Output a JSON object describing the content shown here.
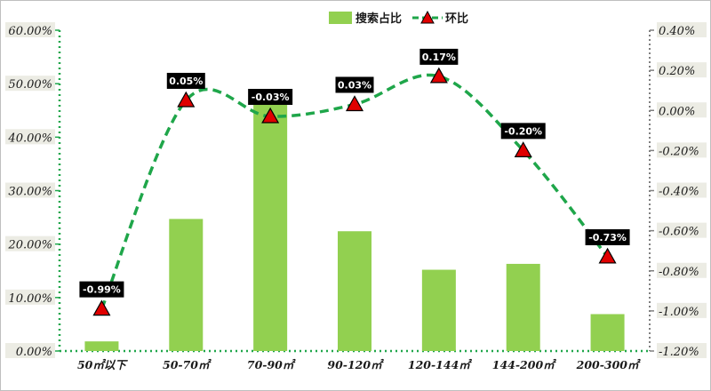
{
  "chart_data": {
    "type": "bar",
    "categories": [
      "50㎡以下",
      "50-70㎡",
      "70-90㎡",
      "90-120㎡",
      "120-144㎡",
      "144-200㎡",
      "200-300㎡"
    ],
    "series": [
      {
        "name": "搜索占比",
        "type": "bar",
        "axis": "left",
        "color": "#92d050",
        "values": [
          1.8,
          24.7,
          46.3,
          22.4,
          15.2,
          16.3,
          6.9
        ]
      },
      {
        "name": "环比",
        "type": "line",
        "axis": "right",
        "color": "#1fa64a",
        "marker_color": "#e00000",
        "values": [
          -0.99,
          0.05,
          -0.03,
          0.03,
          0.17,
          -0.2,
          -0.73
        ],
        "data_labels": [
          "-0.99%",
          "0.05%",
          "-0.03%",
          "0.03%",
          "0.17%",
          "-0.20%",
          "-0.73%"
        ]
      }
    ],
    "y_left": {
      "lim": [
        0,
        60
      ],
      "ticks": [
        "0.00%",
        "10.00%",
        "20.00%",
        "30.00%",
        "40.00%",
        "50.00%",
        "60.00%"
      ]
    },
    "y_right": {
      "lim": [
        -1.2,
        0.4
      ],
      "ticks": [
        "-1.20%",
        "-1.00%",
        "-0.80%",
        "-0.60%",
        "-0.40%",
        "-0.20%",
        "0.00%",
        "0.20%",
        "0.40%"
      ]
    },
    "legend": {
      "placement": "top-center",
      "items": [
        "搜索占比",
        "环比"
      ]
    },
    "grid": false
  }
}
